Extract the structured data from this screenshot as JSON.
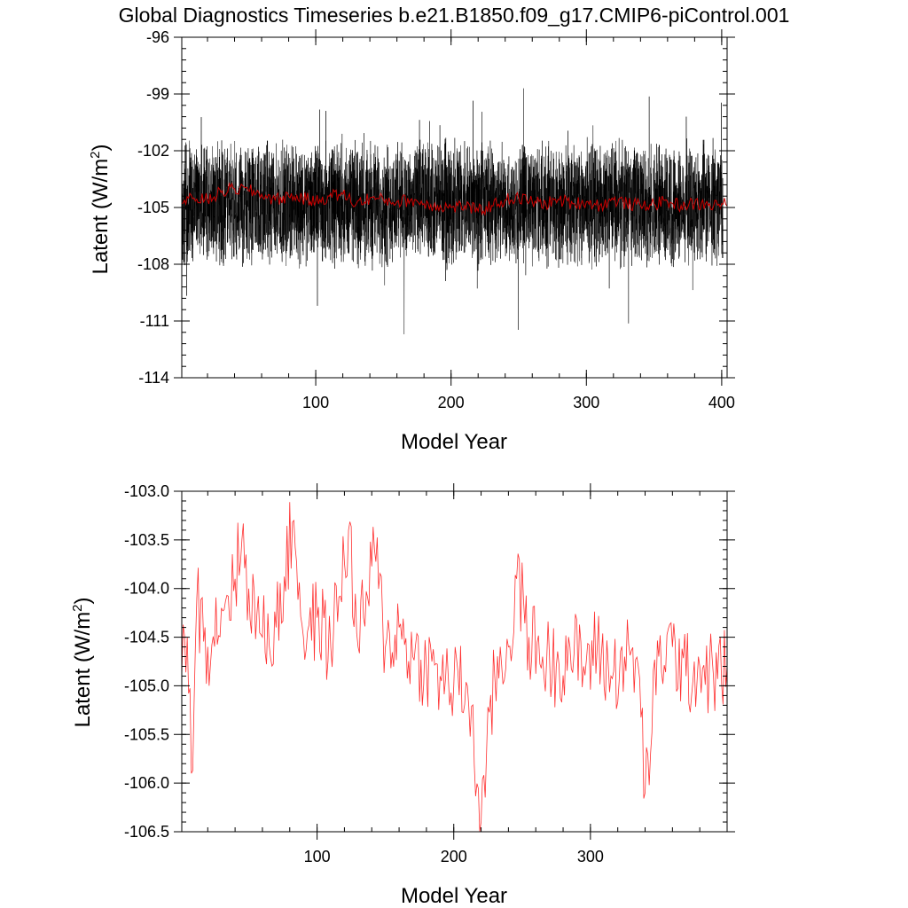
{
  "title": "Global Diagnostics Timeseries b.e21.B1850.f09_g17.CMIP6-piControl.001",
  "colors": {
    "annual": "#000000",
    "smooth": "#cc0000",
    "panel2": "#ff3030"
  },
  "chart_data": [
    {
      "type": "line",
      "xlabel": "Model Year",
      "ylabel_base": "Latent (W/m",
      "ylabel_sup": "2",
      "ylabel_close": ")",
      "xlim": [
        1,
        404
      ],
      "ylim": [
        -114,
        -96
      ],
      "xticks": [
        100,
        200,
        300,
        400
      ],
      "xtick_labels": [
        "100",
        "200",
        "300",
        "400"
      ],
      "yticks": [
        -114,
        -111,
        -108,
        -105,
        -102,
        -99,
        -96
      ],
      "ytick_labels": [
        "-114",
        "-111",
        "-108",
        "-105",
        "-102",
        "-99",
        "-96"
      ],
      "series": [
        {
          "kind": "monthly",
          "color": "#000000",
          "range": [
            -111.7,
            -97.2
          ],
          "center": -104.8
        },
        {
          "kind": "annual-mean",
          "color": "#cc0000",
          "anchors_x": [
            1,
            10,
            20,
            30,
            40,
            50,
            60,
            70,
            80,
            90,
            100,
            110,
            120,
            130,
            140,
            150,
            160,
            170,
            180,
            190,
            200,
            210,
            220,
            230,
            240,
            250,
            260,
            270,
            280,
            290,
            300,
            310,
            320,
            330,
            340,
            350,
            360,
            370,
            380,
            390,
            400
          ],
          "anchors_y": [
            -104.8,
            -104.5,
            -104.6,
            -104.2,
            -104.0,
            -104.1,
            -104.3,
            -104.6,
            -104.4,
            -104.5,
            -104.7,
            -104.4,
            -104.3,
            -104.8,
            -104.5,
            -104.6,
            -104.7,
            -104.6,
            -104.8,
            -104.9,
            -105.0,
            -104.9,
            -105.2,
            -104.9,
            -104.6,
            -104.5,
            -104.7,
            -104.8,
            -104.6,
            -104.8,
            -104.7,
            -104.9,
            -104.6,
            -104.8,
            -104.9,
            -104.8,
            -104.7,
            -104.9,
            -104.8,
            -104.9,
            -104.8
          ]
        }
      ]
    },
    {
      "type": "line",
      "xlabel": "Model Year",
      "ylabel_base": "Latent (W/m",
      "ylabel_sup": "2",
      "ylabel_close": ")",
      "xlim": [
        1,
        400
      ],
      "ylim": [
        -106.5,
        -103.0
      ],
      "xticks": [
        100,
        200,
        300
      ],
      "xtick_labels": [
        "100",
        "200",
        "300"
      ],
      "yticks": [
        -106.5,
        -106.0,
        -105.5,
        -105.0,
        -104.5,
        -104.0,
        -103.5,
        -103.0
      ],
      "ytick_labels": [
        "-106.5",
        "-106.0",
        "-105.5",
        "-105.0",
        "-104.5",
        "-104.0",
        "-103.5",
        "-103.0"
      ],
      "series": [
        {
          "kind": "annual-mean",
          "color": "#ff3030",
          "anchors_x": [
            1,
            5,
            8,
            12,
            20,
            30,
            40,
            45,
            50,
            60,
            70,
            83,
            90,
            100,
            110,
            123,
            130,
            142,
            150,
            160,
            170,
            180,
            190,
            200,
            210,
            220,
            230,
            240,
            246,
            255,
            265,
            275,
            285,
            295,
            305,
            315,
            325,
            335,
            340,
            350,
            360,
            370,
            380,
            390,
            400
          ],
          "anchors_y": [
            -104.9,
            -104.5,
            -105.9,
            -104.1,
            -104.6,
            -104.2,
            -103.9,
            -103.5,
            -104.0,
            -104.5,
            -104.4,
            -103.3,
            -104.5,
            -104.3,
            -104.6,
            -103.4,
            -104.6,
            -103.6,
            -104.6,
            -104.4,
            -104.7,
            -104.8,
            -104.9,
            -105.0,
            -105.0,
            -106.4,
            -104.9,
            -104.6,
            -103.9,
            -104.5,
            -104.7,
            -104.8,
            -104.6,
            -104.8,
            -104.6,
            -104.9,
            -104.7,
            -104.8,
            -106.1,
            -104.7,
            -104.6,
            -104.9,
            -104.8,
            -104.9,
            -104.8
          ]
        }
      ]
    }
  ]
}
